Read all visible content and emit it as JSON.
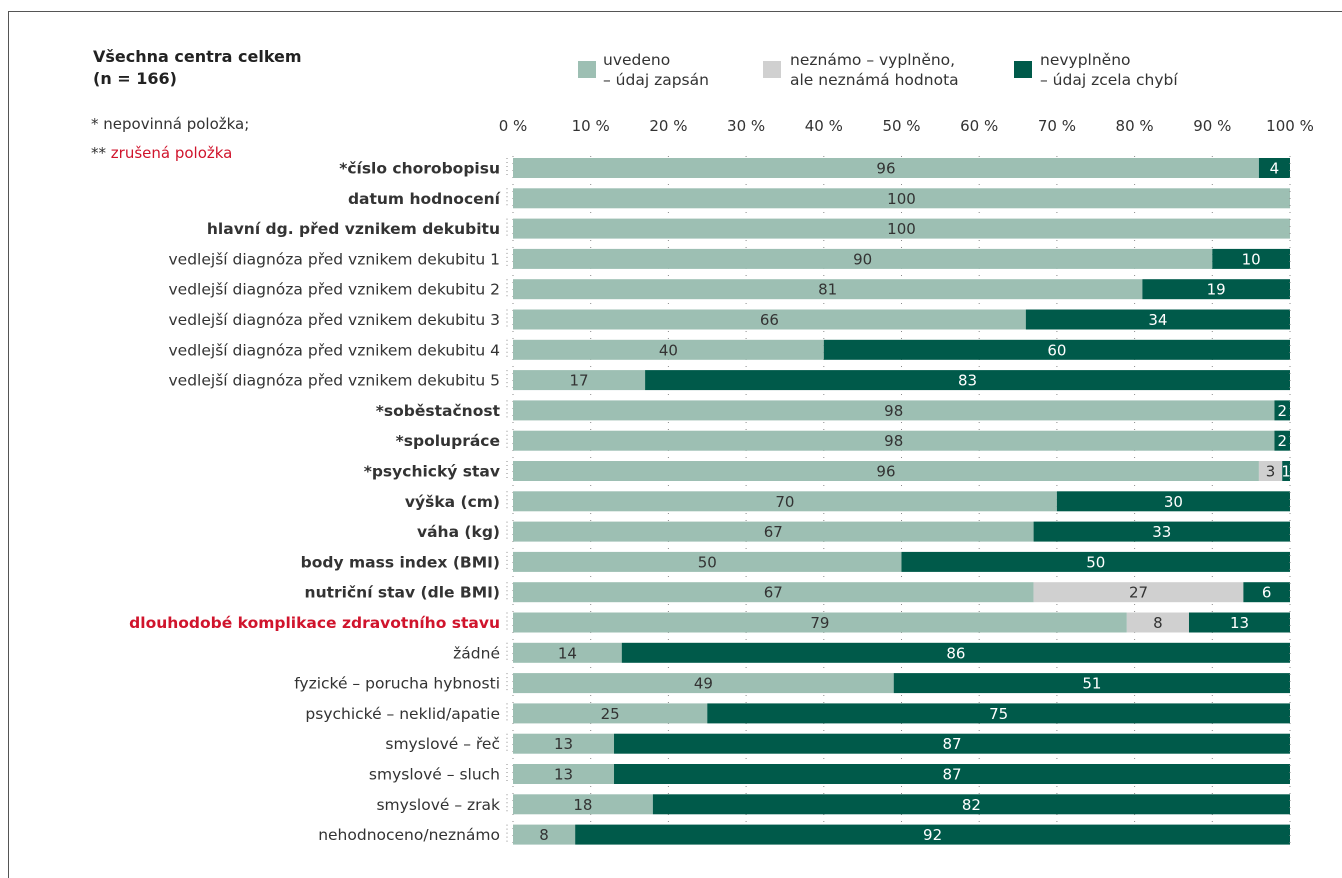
{
  "header": {
    "title_line1": "Všechna centra celkem",
    "title_line2": "(n = 166)",
    "note1": "* nepovinná položka;",
    "note2_prefix": "** ",
    "note2_text": "zrušená položka"
  },
  "legend": [
    {
      "line1": "uvedeno",
      "line2": "– údaj zapsán",
      "color": "#9dbfb3"
    },
    {
      "line1": "neznámo – vyplněno,",
      "line2": "ale neznámá hodnota",
      "color": "#d0d0d0"
    },
    {
      "line1": "nevyplněno",
      "line2": "– údaj zcela chybí",
      "color": "#005a4a"
    }
  ],
  "chart_data": {
    "type": "bar",
    "orientation": "horizontal",
    "stacked": true,
    "xlim": [
      0,
      100
    ],
    "x_ticks": [
      "0 %",
      "10 %",
      "20 %",
      "30 %",
      "40 %",
      "50 %",
      "60 %",
      "70 %",
      "80 %",
      "90 %",
      "100 %"
    ],
    "series_names": [
      "uvedeno – údaj zapsán",
      "neznámo – vyplněno, ale neznámá hodnota",
      "nevyplněno – údaj zcela chybí"
    ],
    "colors": {
      "uvedeno": "#9dbfb3",
      "neznamo": "#d0d0d0",
      "nevyplneno": "#005a4a",
      "red_label": "#d0142c"
    },
    "rows": [
      {
        "label": "*číslo chorobopisu",
        "bold": true,
        "values": [
          96,
          0,
          4
        ]
      },
      {
        "label": "datum hodnocení",
        "bold": true,
        "values": [
          100,
          0,
          0
        ]
      },
      {
        "label": "hlavní dg. před vznikem dekubitu",
        "bold": true,
        "values": [
          100,
          0,
          0
        ]
      },
      {
        "label": "vedlejší diagnóza před vznikem dekubitu 1",
        "bold": false,
        "values": [
          90,
          0,
          10
        ]
      },
      {
        "label": "vedlejší diagnóza před vznikem dekubitu 2",
        "bold": false,
        "values": [
          81,
          0,
          19
        ]
      },
      {
        "label": "vedlejší diagnóza před vznikem dekubitu 3",
        "bold": false,
        "values": [
          66,
          0,
          34
        ]
      },
      {
        "label": "vedlejší diagnóza před vznikem dekubitu 4",
        "bold": false,
        "values": [
          40,
          0,
          60
        ]
      },
      {
        "label": "vedlejší diagnóza před vznikem dekubitu 5",
        "bold": false,
        "values": [
          17,
          0,
          83
        ]
      },
      {
        "label": "*soběstačnost",
        "bold": true,
        "values": [
          98,
          0,
          2
        ]
      },
      {
        "label": "*spolupráce",
        "bold": true,
        "values": [
          98,
          0,
          2
        ]
      },
      {
        "label": "*psychický stav",
        "bold": true,
        "values": [
          96,
          3,
          1
        ]
      },
      {
        "label": "výška (cm)",
        "bold": true,
        "values": [
          70,
          0,
          30
        ]
      },
      {
        "label": "váha (kg)",
        "bold": true,
        "values": [
          67,
          0,
          33
        ]
      },
      {
        "label": "body mass index (BMI)",
        "bold": true,
        "values": [
          50,
          0,
          50
        ]
      },
      {
        "label": "nutriční stav (dle BMI)",
        "bold": true,
        "values": [
          67,
          27,
          6
        ]
      },
      {
        "label": "dlouhodobé komplikace zdravotního stavu",
        "bold": true,
        "red": true,
        "values": [
          79,
          8,
          13
        ]
      },
      {
        "label": "žádné",
        "bold": false,
        "values": [
          14,
          0,
          86
        ]
      },
      {
        "label": "fyzické – porucha hybnosti",
        "bold": false,
        "values": [
          49,
          0,
          51
        ]
      },
      {
        "label": "psychické – neklid/apatie",
        "bold": false,
        "values": [
          25,
          0,
          75
        ]
      },
      {
        "label": "smyslové – řeč",
        "bold": false,
        "values": [
          13,
          0,
          87
        ]
      },
      {
        "label": "smyslové – sluch",
        "bold": false,
        "values": [
          13,
          0,
          87
        ]
      },
      {
        "label": "smyslové – zrak",
        "bold": false,
        "values": [
          18,
          0,
          82
        ]
      },
      {
        "label": "nehodnoceno/neznámo",
        "bold": false,
        "values": [
          8,
          0,
          92
        ]
      }
    ]
  }
}
